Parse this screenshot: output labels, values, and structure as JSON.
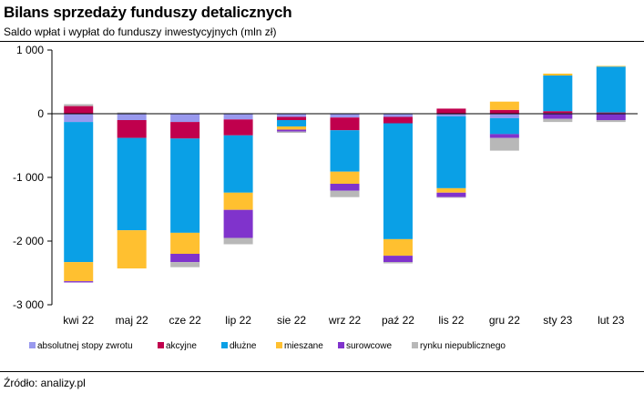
{
  "title": "Bilans sprzedaży funduszy detalicznych",
  "subtitle": "Saldo wpłat i wypłat do funduszy inwestycyjnych (mln zł)",
  "source": "Źródło: analizy.pl",
  "chart_data": {
    "type": "bar",
    "stacked": true,
    "categories": [
      "kwi 22",
      "maj 22",
      "cze 22",
      "lip 22",
      "sie 22",
      "wrz 22",
      "paź 22",
      "lis 22",
      "gru 22",
      "sty 23",
      "lut 23"
    ],
    "y_ticks": [
      1000,
      0,
      -1000,
      -2000,
      -3000
    ],
    "y_tick_labels": [
      "1 000",
      "0",
      "-1 000",
      "-2 000",
      "-3 000"
    ],
    "ylim": [
      -3000,
      1000
    ],
    "grid": false,
    "legend_position": "bottom",
    "series": [
      {
        "name": "absolutnej stopy zwrotu",
        "color": "#9999ee",
        "values": [
          -130,
          -100,
          -130,
          -90,
          -50,
          -60,
          -50,
          -40,
          -70,
          10,
          10
        ]
      },
      {
        "name": "akcyjne",
        "color": "#c0004d",
        "values": [
          120,
          -280,
          -260,
          -250,
          -50,
          -200,
          -100,
          80,
          60,
          30,
          10
        ]
      },
      {
        "name": "dłużne",
        "color": "#0aa0e6",
        "values": [
          -2200,
          -1450,
          -1480,
          -900,
          -100,
          -650,
          -1820,
          -1130,
          -250,
          560,
          720
        ]
      },
      {
        "name": "mieszane",
        "color": "#ffc030",
        "values": [
          -300,
          -600,
          -330,
          -270,
          -50,
          -190,
          -260,
          -70,
          130,
          30,
          10
        ]
      },
      {
        "name": "surowcowe",
        "color": "#8033cc",
        "values": [
          -20,
          0,
          -130,
          -440,
          -30,
          -110,
          -100,
          -70,
          -60,
          -80,
          -100
        ]
      },
      {
        "name": "rynku niepublicznego",
        "color": "#b8b8b8",
        "values": [
          30,
          20,
          -80,
          -100,
          -20,
          -100,
          -20,
          -10,
          -200,
          -50,
          -30
        ]
      }
    ]
  }
}
